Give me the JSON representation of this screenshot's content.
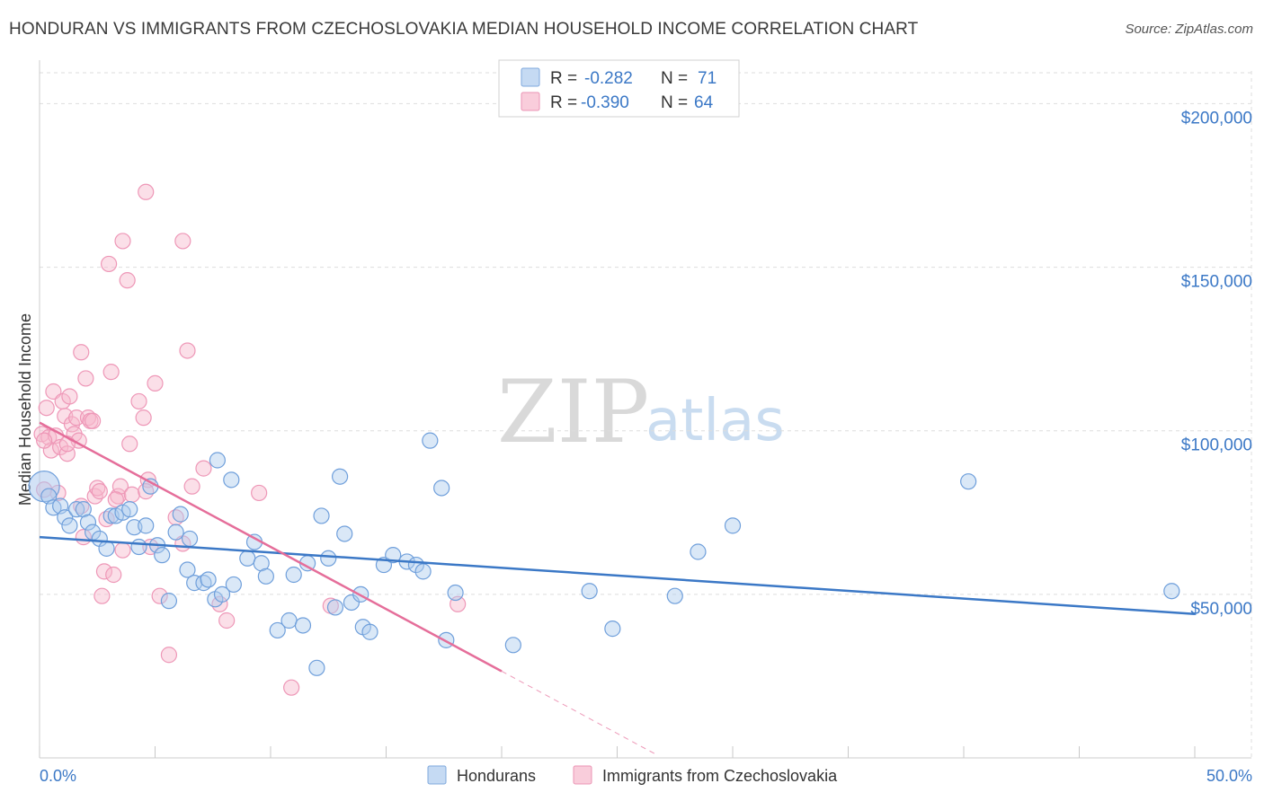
{
  "title": "HONDURAN VS IMMIGRANTS FROM CZECHOSLOVAKIA MEDIAN HOUSEHOLD INCOME CORRELATION CHART",
  "source": "Source: ZipAtlas.com",
  "watermark": {
    "zip": "ZIP",
    "atlas": "atlas"
  },
  "colors": {
    "blue": "#3b78c6",
    "blue_fill": "#aecbee",
    "pink": "#e56e9a",
    "pink_fill": "#f6b9cd",
    "grid": "#dddddd"
  },
  "legend": {
    "rows": [
      {
        "r_label": "R =",
        "r_value": "-0.282",
        "n_label": "N =",
        "n_value": "71"
      },
      {
        "r_label": "R =",
        "r_value": "-0.390",
        "n_label": "N =",
        "n_value": "64"
      }
    ]
  },
  "bottom_legend": [
    "Hondurans",
    "Immigrants from Czechoslovakia"
  ],
  "chart_data": {
    "type": "scatter",
    "title": "HONDURAN VS IMMIGRANTS FROM CZECHOSLOVAKIA MEDIAN HOUSEHOLD INCOME CORRELATION CHART",
    "xlabel": "",
    "ylabel": "Median Household Income",
    "xlim": [
      0,
      50
    ],
    "ylim": [
      0,
      210000
    ],
    "x_tick_labels": [
      "0.0%",
      "50.0%"
    ],
    "y_ticks": [
      50000,
      100000,
      150000,
      200000
    ],
    "y_tick_labels": [
      "$50,000",
      "$100,000",
      "$150,000",
      "$200,000"
    ],
    "grid": true,
    "series": [
      {
        "name": "Hondurans",
        "color": "#3b78c6",
        "r": -0.282,
        "n": 71,
        "trend": {
          "x0": 0,
          "y0": 67500,
          "x1": 50,
          "y1": 44000
        },
        "points": [
          [
            0.2,
            83000
          ],
          [
            0.4,
            80000
          ],
          [
            0.6,
            76500
          ],
          [
            0.9,
            77000
          ],
          [
            1.1,
            73500
          ],
          [
            1.3,
            71000
          ],
          [
            1.6,
            76000
          ],
          [
            1.9,
            76000
          ],
          [
            2.1,
            72000
          ],
          [
            2.3,
            69000
          ],
          [
            2.6,
            67000
          ],
          [
            2.9,
            64000
          ],
          [
            3.1,
            74000
          ],
          [
            3.3,
            74000
          ],
          [
            3.6,
            75000
          ],
          [
            3.9,
            76000
          ],
          [
            4.1,
            70500
          ],
          [
            4.3,
            64500
          ],
          [
            4.6,
            71000
          ],
          [
            4.8,
            83000
          ],
          [
            5.1,
            65000
          ],
          [
            5.3,
            62000
          ],
          [
            5.6,
            48000
          ],
          [
            5.9,
            69000
          ],
          [
            6.1,
            74500
          ],
          [
            6.5,
            67000
          ],
          [
            6.4,
            57500
          ],
          [
            6.7,
            53500
          ],
          [
            7.1,
            53500
          ],
          [
            7.3,
            54500
          ],
          [
            7.7,
            91000
          ],
          [
            7.6,
            48500
          ],
          [
            7.9,
            50000
          ],
          [
            8.3,
            85000
          ],
          [
            8.4,
            53000
          ],
          [
            9.0,
            61000
          ],
          [
            9.3,
            66000
          ],
          [
            9.6,
            59500
          ],
          [
            9.8,
            55500
          ],
          [
            10.3,
            39000
          ],
          [
            10.8,
            42000
          ],
          [
            11.0,
            56000
          ],
          [
            11.4,
            40500
          ],
          [
            11.6,
            59500
          ],
          [
            12.0,
            27500
          ],
          [
            12.2,
            74000
          ],
          [
            12.5,
            61000
          ],
          [
            12.8,
            46000
          ],
          [
            13.0,
            86000
          ],
          [
            13.2,
            68500
          ],
          [
            13.5,
            47500
          ],
          [
            13.9,
            50000
          ],
          [
            14.0,
            40000
          ],
          [
            14.3,
            38500
          ],
          [
            14.9,
            59000
          ],
          [
            15.3,
            62000
          ],
          [
            15.9,
            60000
          ],
          [
            16.3,
            59000
          ],
          [
            16.6,
            57000
          ],
          [
            16.9,
            97000
          ],
          [
            17.4,
            82500
          ],
          [
            18.0,
            50500
          ],
          [
            17.6,
            36000
          ],
          [
            20.5,
            34500
          ],
          [
            23.8,
            51000
          ],
          [
            24.8,
            39500
          ],
          [
            27.5,
            49500
          ],
          [
            28.5,
            63000
          ],
          [
            30.0,
            71000
          ],
          [
            40.2,
            84500
          ],
          [
            49.0,
            51000
          ]
        ]
      },
      {
        "name": "Immigrants from Czechoslovakia",
        "color": "#e56e9a",
        "r": -0.39,
        "n": 64,
        "trend": {
          "x0": 0,
          "y0": 102500,
          "x1": 20,
          "y1": 26500,
          "dash_x1": 26.7,
          "dash_y1": 1000
        },
        "points": [
          [
            0.1,
            99000
          ],
          [
            0.2,
            82000
          ],
          [
            0.3,
            107000
          ],
          [
            0.4,
            98000
          ],
          [
            0.5,
            94000
          ],
          [
            0.6,
            112000
          ],
          [
            0.7,
            98500
          ],
          [
            0.8,
            81000
          ],
          [
            0.9,
            95000
          ],
          [
            1.0,
            109000
          ],
          [
            1.1,
            104500
          ],
          [
            1.2,
            93000
          ],
          [
            1.3,
            110500
          ],
          [
            1.4,
            102000
          ],
          [
            1.5,
            99000
          ],
          [
            1.6,
            104000
          ],
          [
            1.7,
            97000
          ],
          [
            1.8,
            77000
          ],
          [
            2.0,
            116000
          ],
          [
            2.1,
            104000
          ],
          [
            2.2,
            103000
          ],
          [
            1.9,
            67500
          ],
          [
            2.4,
            80000
          ],
          [
            2.5,
            82500
          ],
          [
            1.8,
            124000
          ],
          [
            2.6,
            81500
          ],
          [
            2.7,
            49500
          ],
          [
            2.9,
            73000
          ],
          [
            2.8,
            57000
          ],
          [
            3.0,
            151000
          ],
          [
            3.1,
            118000
          ],
          [
            3.2,
            56000
          ],
          [
            3.4,
            80000
          ],
          [
            3.5,
            83000
          ],
          [
            3.6,
            158000
          ],
          [
            3.8,
            146000
          ],
          [
            3.6,
            63500
          ],
          [
            3.9,
            96000
          ],
          [
            4.0,
            80500
          ],
          [
            4.3,
            109000
          ],
          [
            4.5,
            104000
          ],
          [
            4.7,
            85000
          ],
          [
            4.8,
            64500
          ],
          [
            4.6,
            81500
          ],
          [
            5.0,
            114500
          ],
          [
            5.2,
            49500
          ],
          [
            5.6,
            31500
          ],
          [
            5.9,
            73500
          ],
          [
            4.6,
            173000
          ],
          [
            6.2,
            158000
          ],
          [
            6.4,
            124500
          ],
          [
            6.6,
            83000
          ],
          [
            6.2,
            65500
          ],
          [
            7.1,
            88500
          ],
          [
            7.8,
            47000
          ],
          [
            8.1,
            42000
          ],
          [
            9.5,
            81000
          ],
          [
            10.9,
            21500
          ],
          [
            12.6,
            46500
          ],
          [
            18.1,
            47000
          ],
          [
            0.2,
            97000
          ],
          [
            1.2,
            96000
          ],
          [
            2.3,
            103000
          ],
          [
            3.3,
            79000
          ]
        ]
      }
    ]
  }
}
